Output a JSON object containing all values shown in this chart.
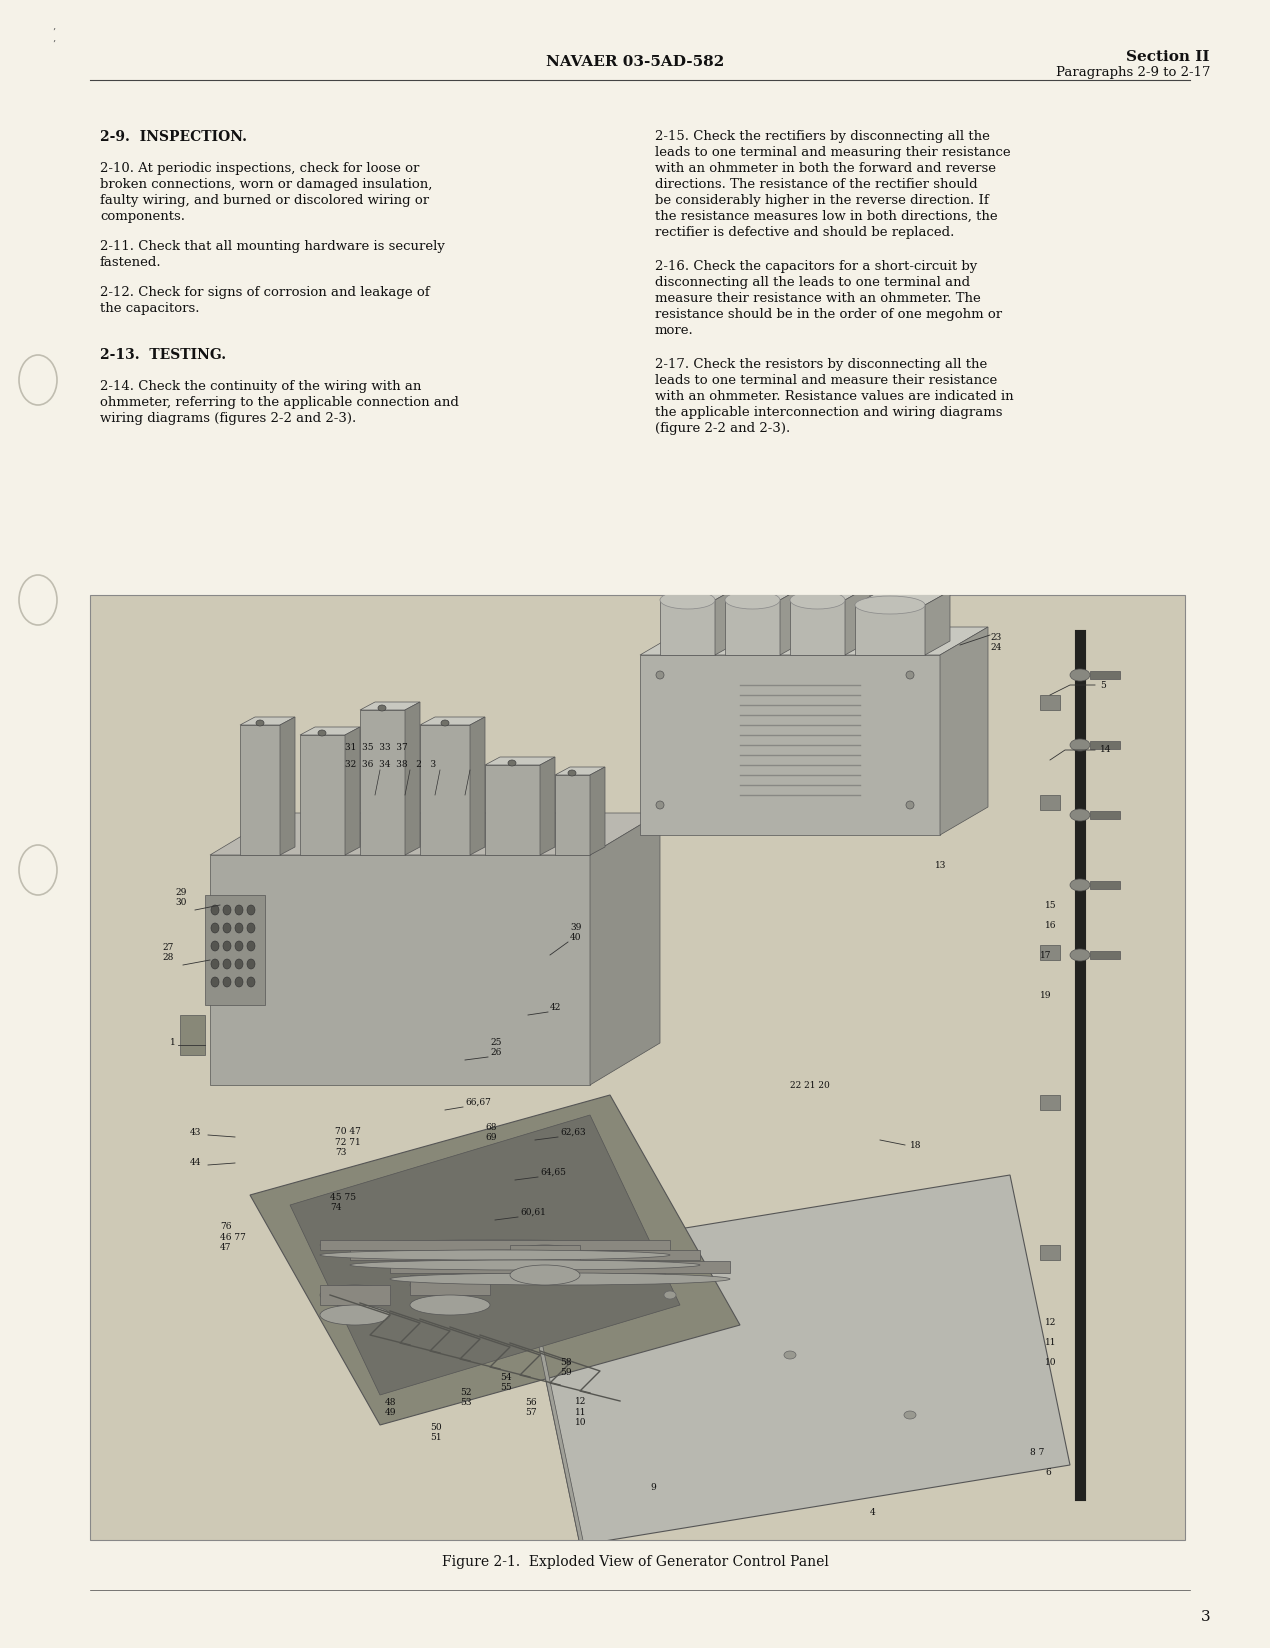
{
  "page_bg": "#f5f2e8",
  "text_color": "#111111",
  "header_center": "NAVAER 03-5AD-582",
  "header_right_line1": "Section II",
  "header_right_line2": "Paragraphs 2-9 to 2-17",
  "footer_text": "Figure 2-1.  Exploded View of Generator Control Panel",
  "page_number": "3",
  "diagram_bg": "#d8d4c4",
  "diagram_border": "#999999"
}
